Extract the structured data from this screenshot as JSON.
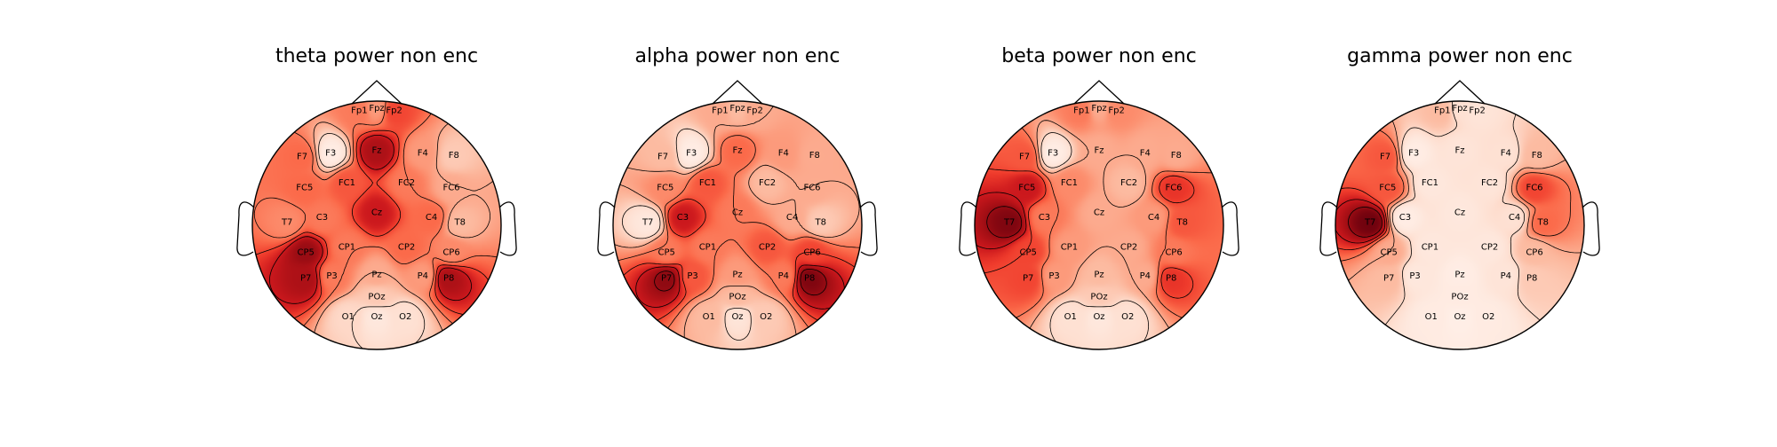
{
  "figure": {
    "colormap": "Reds",
    "colormap_stops": [
      "#fff5f0",
      "#fee0d2",
      "#fcbba1",
      "#fc9272",
      "#fb6a4a",
      "#ef3b2c",
      "#cb181d",
      "#a50f15",
      "#67000d"
    ],
    "outline_color": "#000000",
    "contour_color": "#000000"
  },
  "chart_data": [
    {
      "type": "heatmap",
      "subtype": "eeg-topomap",
      "title": "theta power non enc",
      "electrodes": [
        {
          "name": "Fp1",
          "x": -0.14,
          "y": 0.92,
          "value": 0.45
        },
        {
          "name": "Fpz",
          "x": 0.0,
          "y": 0.94,
          "value": 0.35
        },
        {
          "name": "Fp2",
          "x": 0.14,
          "y": 0.92,
          "value": 0.6
        },
        {
          "name": "F7",
          "x": -0.6,
          "y": 0.55,
          "value": 0.5
        },
        {
          "name": "F3",
          "x": -0.37,
          "y": 0.58,
          "value": 0.05
        },
        {
          "name": "Fz",
          "x": 0.0,
          "y": 0.6,
          "value": 0.85
        },
        {
          "name": "F4",
          "x": 0.37,
          "y": 0.58,
          "value": 0.35
        },
        {
          "name": "F8",
          "x": 0.62,
          "y": 0.56,
          "value": 0.2
        },
        {
          "name": "FC5",
          "x": -0.58,
          "y": 0.3,
          "value": 0.5
        },
        {
          "name": "FC1",
          "x": -0.24,
          "y": 0.34,
          "value": 0.55
        },
        {
          "name": "FC2",
          "x": 0.24,
          "y": 0.34,
          "value": 0.45
        },
        {
          "name": "FC6",
          "x": 0.6,
          "y": 0.3,
          "value": 0.3
        },
        {
          "name": "T7",
          "x": -0.72,
          "y": 0.02,
          "value": 0.4
        },
        {
          "name": "C3",
          "x": -0.44,
          "y": 0.06,
          "value": 0.45
        },
        {
          "name": "Cz",
          "x": 0.0,
          "y": 0.1,
          "value": 0.75
        },
        {
          "name": "C4",
          "x": 0.44,
          "y": 0.06,
          "value": 0.5
        },
        {
          "name": "T8",
          "x": 0.67,
          "y": 0.02,
          "value": 0.25
        },
        {
          "name": "CP5",
          "x": -0.57,
          "y": -0.22,
          "value": 0.9
        },
        {
          "name": "CP1",
          "x": -0.24,
          "y": -0.18,
          "value": 0.45
        },
        {
          "name": "CP2",
          "x": 0.24,
          "y": -0.18,
          "value": 0.5
        },
        {
          "name": "CP6",
          "x": 0.6,
          "y": -0.22,
          "value": 0.4
        },
        {
          "name": "P7",
          "x": -0.57,
          "y": -0.43,
          "value": 0.85
        },
        {
          "name": "P3",
          "x": -0.36,
          "y": -0.41,
          "value": 0.45
        },
        {
          "name": "Pz",
          "x": 0.0,
          "y": -0.4,
          "value": 0.3
        },
        {
          "name": "P4",
          "x": 0.37,
          "y": -0.41,
          "value": 0.35
        },
        {
          "name": "P8",
          "x": 0.58,
          "y": -0.43,
          "value": 0.85
        },
        {
          "name": "POz",
          "x": 0.0,
          "y": -0.58,
          "value": 0.2
        },
        {
          "name": "O1",
          "x": -0.23,
          "y": -0.74,
          "value": 0.15
        },
        {
          "name": "Oz",
          "x": 0.0,
          "y": -0.74,
          "value": 0.08
        },
        {
          "name": "O2",
          "x": 0.23,
          "y": -0.74,
          "value": 0.12
        }
      ]
    },
    {
      "type": "heatmap",
      "subtype": "eeg-topomap",
      "title": "alpha power non enc",
      "electrodes": [
        {
          "name": "Fp1",
          "x": -0.14,
          "y": 0.92,
          "value": 0.3
        },
        {
          "name": "Fpz",
          "x": 0.0,
          "y": 0.94,
          "value": 0.25
        },
        {
          "name": "Fp2",
          "x": 0.14,
          "y": 0.92,
          "value": 0.3
        },
        {
          "name": "F7",
          "x": -0.6,
          "y": 0.55,
          "value": 0.25
        },
        {
          "name": "F3",
          "x": -0.37,
          "y": 0.58,
          "value": 0.05
        },
        {
          "name": "Fz",
          "x": 0.0,
          "y": 0.6,
          "value": 0.5
        },
        {
          "name": "F4",
          "x": 0.37,
          "y": 0.58,
          "value": 0.35
        },
        {
          "name": "F8",
          "x": 0.62,
          "y": 0.56,
          "value": 0.3
        },
        {
          "name": "FC5",
          "x": -0.58,
          "y": 0.3,
          "value": 0.4
        },
        {
          "name": "FC1",
          "x": -0.24,
          "y": 0.34,
          "value": 0.55
        },
        {
          "name": "FC2",
          "x": 0.24,
          "y": 0.34,
          "value": 0.25
        },
        {
          "name": "FC6",
          "x": 0.6,
          "y": 0.3,
          "value": 0.3
        },
        {
          "name": "T7",
          "x": -0.72,
          "y": 0.02,
          "value": 0.08
        },
        {
          "name": "C3",
          "x": -0.44,
          "y": 0.06,
          "value": 0.75
        },
        {
          "name": "Cz",
          "x": 0.0,
          "y": 0.1,
          "value": 0.45
        },
        {
          "name": "C4",
          "x": 0.44,
          "y": 0.06,
          "value": 0.3
        },
        {
          "name": "T8",
          "x": 0.67,
          "y": 0.02,
          "value": 0.2
        },
        {
          "name": "CP5",
          "x": -0.57,
          "y": -0.22,
          "value": 0.45
        },
        {
          "name": "CP1",
          "x": -0.24,
          "y": -0.18,
          "value": 0.45
        },
        {
          "name": "CP2",
          "x": 0.24,
          "y": -0.18,
          "value": 0.55
        },
        {
          "name": "CP6",
          "x": 0.6,
          "y": -0.22,
          "value": 0.6
        },
        {
          "name": "P7",
          "x": -0.57,
          "y": -0.43,
          "value": 0.92
        },
        {
          "name": "P3",
          "x": -0.36,
          "y": -0.41,
          "value": 0.55
        },
        {
          "name": "Pz",
          "x": 0.0,
          "y": -0.4,
          "value": 0.35
        },
        {
          "name": "P4",
          "x": 0.37,
          "y": -0.41,
          "value": 0.45
        },
        {
          "name": "P8",
          "x": 0.58,
          "y": -0.43,
          "value": 0.95
        },
        {
          "name": "POz",
          "x": 0.0,
          "y": -0.58,
          "value": 0.25
        },
        {
          "name": "O1",
          "x": -0.23,
          "y": -0.74,
          "value": 0.25
        },
        {
          "name": "Oz",
          "x": 0.0,
          "y": -0.74,
          "value": 0.1
        },
        {
          "name": "O2",
          "x": 0.23,
          "y": -0.74,
          "value": 0.2
        }
      ]
    },
    {
      "type": "heatmap",
      "subtype": "eeg-topomap",
      "title": "beta power non enc",
      "electrodes": [
        {
          "name": "Fp1",
          "x": -0.14,
          "y": 0.92,
          "value": 0.45
        },
        {
          "name": "Fpz",
          "x": 0.0,
          "y": 0.94,
          "value": 0.3
        },
        {
          "name": "Fp2",
          "x": 0.14,
          "y": 0.92,
          "value": 0.4
        },
        {
          "name": "F7",
          "x": -0.6,
          "y": 0.55,
          "value": 0.55
        },
        {
          "name": "F3",
          "x": -0.37,
          "y": 0.58,
          "value": 0.05
        },
        {
          "name": "Fz",
          "x": 0.0,
          "y": 0.6,
          "value": 0.3
        },
        {
          "name": "F4",
          "x": 0.37,
          "y": 0.58,
          "value": 0.3
        },
        {
          "name": "F8",
          "x": 0.62,
          "y": 0.56,
          "value": 0.3
        },
        {
          "name": "FC5",
          "x": -0.58,
          "y": 0.3,
          "value": 0.75
        },
        {
          "name": "FC1",
          "x": -0.24,
          "y": 0.34,
          "value": 0.4
        },
        {
          "name": "FC2",
          "x": 0.24,
          "y": 0.34,
          "value": 0.25
        },
        {
          "name": "FC6",
          "x": 0.6,
          "y": 0.3,
          "value": 0.65
        },
        {
          "name": "T7",
          "x": -0.72,
          "y": 0.02,
          "value": 0.95
        },
        {
          "name": "C3",
          "x": -0.44,
          "y": 0.06,
          "value": 0.45
        },
        {
          "name": "Cz",
          "x": 0.0,
          "y": 0.1,
          "value": 0.3
        },
        {
          "name": "C4",
          "x": 0.44,
          "y": 0.06,
          "value": 0.35
        },
        {
          "name": "T8",
          "x": 0.67,
          "y": 0.02,
          "value": 0.55
        },
        {
          "name": "CP5",
          "x": -0.57,
          "y": -0.22,
          "value": 0.6
        },
        {
          "name": "CP1",
          "x": -0.24,
          "y": -0.18,
          "value": 0.35
        },
        {
          "name": "CP2",
          "x": 0.24,
          "y": -0.18,
          "value": 0.3
        },
        {
          "name": "CP6",
          "x": 0.6,
          "y": -0.22,
          "value": 0.45
        },
        {
          "name": "P7",
          "x": -0.57,
          "y": -0.43,
          "value": 0.6
        },
        {
          "name": "P3",
          "x": -0.36,
          "y": -0.41,
          "value": 0.35
        },
        {
          "name": "Pz",
          "x": 0.0,
          "y": -0.4,
          "value": 0.25
        },
        {
          "name": "P4",
          "x": 0.37,
          "y": -0.41,
          "value": 0.3
        },
        {
          "name": "P8",
          "x": 0.58,
          "y": -0.43,
          "value": 0.65
        },
        {
          "name": "POz",
          "x": 0.0,
          "y": -0.58,
          "value": 0.2
        },
        {
          "name": "O1",
          "x": -0.23,
          "y": -0.74,
          "value": 0.12
        },
        {
          "name": "Oz",
          "x": 0.0,
          "y": -0.74,
          "value": 0.08
        },
        {
          "name": "O2",
          "x": 0.23,
          "y": -0.74,
          "value": 0.12
        }
      ]
    },
    {
      "type": "heatmap",
      "subtype": "eeg-topomap",
      "title": "gamma power non enc",
      "electrodes": [
        {
          "name": "Fp1",
          "x": -0.14,
          "y": 0.92,
          "value": 0.25
        },
        {
          "name": "Fpz",
          "x": 0.0,
          "y": 0.94,
          "value": 0.12
        },
        {
          "name": "Fp2",
          "x": 0.14,
          "y": 0.92,
          "value": 0.1
        },
        {
          "name": "F7",
          "x": -0.6,
          "y": 0.55,
          "value": 0.55
        },
        {
          "name": "F3",
          "x": -0.37,
          "y": 0.58,
          "value": 0.05
        },
        {
          "name": "Fz",
          "x": 0.0,
          "y": 0.6,
          "value": 0.1
        },
        {
          "name": "F4",
          "x": 0.37,
          "y": 0.58,
          "value": 0.12
        },
        {
          "name": "F8",
          "x": 0.62,
          "y": 0.56,
          "value": 0.25
        },
        {
          "name": "FC5",
          "x": -0.58,
          "y": 0.3,
          "value": 0.55
        },
        {
          "name": "FC1",
          "x": -0.24,
          "y": 0.34,
          "value": 0.08
        },
        {
          "name": "FC2",
          "x": 0.24,
          "y": 0.34,
          "value": 0.1
        },
        {
          "name": "FC6",
          "x": 0.6,
          "y": 0.3,
          "value": 0.6
        },
        {
          "name": "T7",
          "x": -0.72,
          "y": 0.02,
          "value": 0.98
        },
        {
          "name": "C3",
          "x": -0.44,
          "y": 0.06,
          "value": 0.05
        },
        {
          "name": "Cz",
          "x": 0.0,
          "y": 0.1,
          "value": 0.08
        },
        {
          "name": "C4",
          "x": 0.44,
          "y": 0.06,
          "value": 0.12
        },
        {
          "name": "T8",
          "x": 0.67,
          "y": 0.02,
          "value": 0.5
        },
        {
          "name": "CP5",
          "x": -0.57,
          "y": -0.22,
          "value": 0.3
        },
        {
          "name": "CP1",
          "x": -0.24,
          "y": -0.18,
          "value": 0.08
        },
        {
          "name": "CP2",
          "x": 0.24,
          "y": -0.18,
          "value": 0.08
        },
        {
          "name": "CP6",
          "x": 0.6,
          "y": -0.22,
          "value": 0.25
        },
        {
          "name": "P7",
          "x": -0.57,
          "y": -0.43,
          "value": 0.25
        },
        {
          "name": "P3",
          "x": -0.36,
          "y": -0.41,
          "value": 0.08
        },
        {
          "name": "Pz",
          "x": 0.0,
          "y": -0.4,
          "value": 0.05
        },
        {
          "name": "P4",
          "x": 0.37,
          "y": -0.41,
          "value": 0.1
        },
        {
          "name": "P8",
          "x": 0.58,
          "y": -0.43,
          "value": 0.2
        },
        {
          "name": "POz",
          "x": 0.0,
          "y": -0.58,
          "value": 0.06
        },
        {
          "name": "O1",
          "x": -0.23,
          "y": -0.74,
          "value": 0.06
        },
        {
          "name": "Oz",
          "x": 0.0,
          "y": -0.74,
          "value": 0.04
        },
        {
          "name": "O2",
          "x": 0.23,
          "y": -0.74,
          "value": 0.06
        }
      ]
    }
  ]
}
